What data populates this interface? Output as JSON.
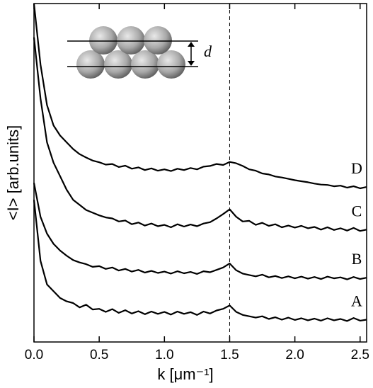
{
  "chart_data": {
    "type": "line",
    "x_label": "k [μm⁻¹]",
    "y_label": "<I> [arb.units]",
    "inset_label": "d",
    "vline": 1.5,
    "xlim": [
      0,
      2.55
    ],
    "ylim": [
      0,
      100
    ],
    "xticks": [
      {
        "value": 0,
        "label": "0.0"
      },
      0.5,
      {
        "value": 1,
        "label": "1.0"
      },
      1.5,
      {
        "value": 2,
        "label": "2.0"
      },
      2.5
    ],
    "x": [
      0,
      0.05,
      0.1,
      0.15,
      0.2,
      0.25,
      0.3,
      0.35,
      0.4,
      0.45,
      0.5,
      0.55,
      0.6,
      0.65,
      0.7,
      0.75,
      0.8,
      0.85,
      0.9,
      0.95,
      1.0,
      1.05,
      1.1,
      1.15,
      1.2,
      1.25,
      1.3,
      1.35,
      1.4,
      1.45,
      1.5,
      1.55,
      1.6,
      1.65,
      1.7,
      1.75,
      1.8,
      1.85,
      1.9,
      1.95,
      2.0,
      2.05,
      2.1,
      2.15,
      2.2,
      2.25,
      2.3,
      2.35,
      2.4,
      2.45,
      2.5,
      2.55
    ],
    "series": [
      {
        "name": "A",
        "color": "#000000",
        "values": [
          42,
          24,
          17,
          15,
          13,
          12,
          11.5,
          10.2,
          11,
          9.6,
          9.8,
          8.9,
          9.7,
          8.6,
          9.4,
          8.4,
          9.1,
          8.2,
          9.0,
          8.3,
          8.9,
          8.1,
          9.0,
          8.3,
          8.8,
          8.0,
          9.0,
          8.4,
          9.3,
          9.8,
          10.8,
          8.9,
          8.0,
          7.6,
          7.2,
          7.6,
          6.8,
          7.3,
          6.6,
          7.2,
          6.5,
          7.0,
          6.4,
          6.9,
          6.3,
          7.0,
          6.4,
          6.8,
          6.2,
          7.1,
          6.3,
          6.6
        ]
      },
      {
        "name": "B",
        "color": "#000000",
        "values": [
          47,
          37,
          32,
          29,
          27,
          25.5,
          24.2,
          23.5,
          23.0,
          22.2,
          22.4,
          21.6,
          22.0,
          21.1,
          21.6,
          20.8,
          21.3,
          20.5,
          21.0,
          20.4,
          20.8,
          20.2,
          20.9,
          20.3,
          20.7,
          20.1,
          20.9,
          20.6,
          21.3,
          22.0,
          23.2,
          21.2,
          20.2,
          19.8,
          19.4,
          19.9,
          19.1,
          19.5,
          18.9,
          19.4,
          18.8,
          19.3,
          18.7,
          19.2,
          18.6,
          19.3,
          18.8,
          19.1,
          18.5,
          19.2,
          18.6,
          19.0
        ]
      },
      {
        "name": "C",
        "color": "#000000",
        "values": [
          90,
          72,
          59,
          53,
          49,
          45,
          42,
          40.5,
          39,
          38.2,
          37.4,
          36.8,
          36.5,
          35.6,
          35.9,
          34.8,
          35.3,
          34.4,
          35.0,
          34.2,
          34.6,
          33.9,
          34.8,
          34.1,
          34.7,
          34.2,
          35.0,
          35.4,
          36.5,
          37.8,
          39.2,
          37.0,
          35.6,
          35.8,
          34.6,
          35.2,
          34.3,
          34.8,
          33.9,
          34.4,
          33.8,
          34.3,
          33.6,
          34.0,
          33.2,
          33.9,
          33.1,
          33.6,
          32.9,
          33.7,
          32.8,
          33.2
        ]
      },
      {
        "name": "D",
        "color": "#000000",
        "values": [
          100,
          82,
          70,
          64,
          61,
          59,
          57,
          55.5,
          54.5,
          53.6,
          53.1,
          52.4,
          52.6,
          51.7,
          52.1,
          51.2,
          51.6,
          50.8,
          51.3,
          50.6,
          51.0,
          50.5,
          51.2,
          50.8,
          51.4,
          51.0,
          51.8,
          52.0,
          52.6,
          52.3,
          53.2,
          52.8,
          52.0,
          51.0,
          50.6,
          49.8,
          49.5,
          48.9,
          48.6,
          48.2,
          47.8,
          47.5,
          47.2,
          46.8,
          46.5,
          46.4,
          46.0,
          46.2,
          45.6,
          46.0,
          45.4,
          45.8
        ]
      }
    ]
  }
}
